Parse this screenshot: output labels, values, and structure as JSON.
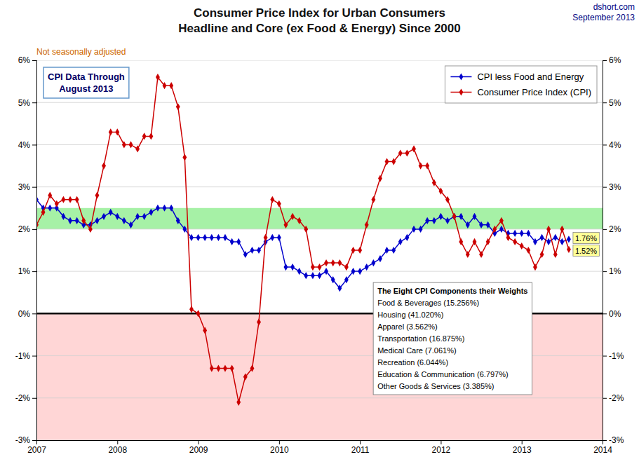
{
  "chart_data": {
    "type": "line",
    "title": [
      "Consumer Price Index for Urban Consumers",
      "Headline and Core (ex Food & Energy) Since 2000"
    ],
    "subtitle": "Not seasonally adjusted",
    "annotations": [
      {
        "text": [
          "dshort.com",
          "September 2013"
        ]
      },
      {
        "text": [
          "CPI Data Through",
          "August 2013"
        ]
      },
      {
        "title": "The Eight CPI Components their Weights",
        "text": [
          "Food & Beverages (15.256%)",
          "Housing (41.020%)",
          "Apparel (3.562%)",
          "Transportation (16.875%)",
          "Medical Care (7.061%)",
          "Recreation (6.044%)",
          "Education & Communication (6.797%)",
          "Other Goods & Services (3.385%)"
        ]
      }
    ],
    "x": [
      2007.0,
      2007.083,
      2007.167,
      2007.25,
      2007.333,
      2007.417,
      2007.5,
      2007.583,
      2007.667,
      2007.75,
      2007.833,
      2007.917,
      2008.0,
      2008.083,
      2008.167,
      2008.25,
      2008.333,
      2008.417,
      2008.5,
      2008.583,
      2008.667,
      2008.75,
      2008.833,
      2008.917,
      2009.0,
      2009.083,
      2009.167,
      2009.25,
      2009.333,
      2009.417,
      2009.5,
      2009.583,
      2009.667,
      2009.75,
      2009.833,
      2009.917,
      2010.0,
      2010.083,
      2010.167,
      2010.25,
      2010.333,
      2010.417,
      2010.5,
      2010.583,
      2010.667,
      2010.75,
      2010.833,
      2010.917,
      2011.0,
      2011.083,
      2011.167,
      2011.25,
      2011.333,
      2011.417,
      2011.5,
      2011.583,
      2011.667,
      2011.75,
      2011.833,
      2011.917,
      2012.0,
      2012.083,
      2012.167,
      2012.25,
      2012.333,
      2012.417,
      2012.5,
      2012.583,
      2012.667,
      2012.75,
      2012.833,
      2012.917,
      2013.0,
      2013.083,
      2013.167,
      2013.25,
      2013.333,
      2013.417,
      2013.5,
      2013.583
    ],
    "series": [
      {
        "name": "CPI less Food and Energy",
        "color": "#0000CC",
        "values": [
          2.7,
          2.5,
          2.5,
          2.5,
          2.3,
          2.2,
          2.2,
          2.1,
          2.1,
          2.2,
          2.3,
          2.4,
          2.3,
          2.2,
          2.1,
          2.3,
          2.3,
          2.4,
          2.5,
          2.5,
          2.5,
          2.2,
          2.0,
          1.8,
          1.8,
          1.8,
          1.8,
          1.8,
          1.8,
          1.7,
          1.7,
          1.4,
          1.5,
          1.5,
          1.7,
          1.8,
          1.8,
          1.1,
          1.1,
          1.0,
          0.9,
          0.9,
          0.9,
          1.0,
          0.8,
          0.6,
          0.8,
          1.0,
          1.0,
          1.1,
          1.2,
          1.3,
          1.5,
          1.5,
          1.7,
          1.8,
          2.0,
          2.0,
          2.2,
          2.2,
          2.3,
          2.2,
          2.3,
          2.3,
          2.1,
          2.3,
          2.1,
          2.1,
          1.9,
          2.0,
          1.9,
          1.9,
          1.9,
          1.9,
          1.7,
          1.8,
          1.7,
          1.8,
          1.7,
          1.76
        ],
        "value_labels": [
          null,
          null,
          null,
          null,
          null,
          null,
          null,
          null,
          null,
          null,
          null,
          null,
          null,
          null,
          null,
          null,
          null,
          null,
          null,
          null,
          null,
          null,
          null,
          null,
          null,
          null,
          null,
          null,
          null,
          null,
          null,
          null,
          null,
          null,
          null,
          null,
          null,
          null,
          null,
          null,
          null,
          null,
          null,
          null,
          null,
          null,
          null,
          null,
          null,
          null,
          null,
          null,
          null,
          null,
          null,
          null,
          null,
          null,
          null,
          null,
          null,
          null,
          null,
          null,
          null,
          null,
          null,
          null,
          null,
          null,
          null,
          null,
          null,
          null,
          null,
          null,
          null,
          null,
          null,
          "1.76%"
        ]
      },
      {
        "name": "Consumer Price Index (CPI)",
        "color": "#CC0000",
        "values": [
          2.1,
          2.4,
          2.8,
          2.6,
          2.7,
          2.7,
          2.7,
          2.2,
          2.0,
          2.8,
          3.5,
          4.3,
          4.3,
          4.0,
          4.0,
          3.9,
          4.2,
          4.2,
          5.6,
          5.4,
          5.4,
          4.9,
          3.7,
          0.1,
          0.0,
          -0.4,
          -1.3,
          -1.3,
          -1.3,
          -1.3,
          -2.1,
          -1.5,
          -1.3,
          -0.2,
          1.8,
          2.7,
          2.6,
          2.1,
          2.3,
          2.2,
          2.0,
          1.1,
          1.1,
          1.2,
          1.2,
          1.2,
          1.1,
          1.5,
          1.5,
          2.1,
          2.7,
          3.2,
          3.6,
          3.6,
          3.8,
          3.8,
          3.9,
          3.5,
          3.5,
          3.1,
          2.9,
          2.7,
          2.3,
          1.7,
          1.4,
          1.7,
          1.4,
          1.7,
          2.0,
          2.2,
          1.8,
          1.7,
          1.6,
          1.5,
          1.1,
          1.4,
          2.0,
          1.4,
          2.0,
          1.52
        ],
        "value_labels": [
          null,
          null,
          null,
          null,
          null,
          null,
          null,
          null,
          null,
          null,
          null,
          null,
          null,
          null,
          null,
          null,
          null,
          null,
          null,
          null,
          null,
          null,
          null,
          null,
          null,
          null,
          null,
          null,
          null,
          null,
          null,
          null,
          null,
          null,
          null,
          null,
          null,
          null,
          null,
          null,
          null,
          null,
          null,
          null,
          null,
          null,
          null,
          null,
          null,
          null,
          null,
          null,
          null,
          null,
          null,
          null,
          null,
          null,
          null,
          null,
          null,
          null,
          null,
          null,
          null,
          null,
          null,
          null,
          null,
          null,
          null,
          null,
          null,
          null,
          null,
          null,
          null,
          null,
          null,
          "1.52%"
        ]
      }
    ],
    "marker": "diamond",
    "bands": [
      {
        "from": -3,
        "to": 0,
        "color": "#FFCCCC"
      },
      {
        "from": 2.0,
        "to": 2.5,
        "color": "#90EE90"
      }
    ],
    "reference_lines": [
      {
        "value": 0,
        "color": "#000000"
      }
    ],
    "xlim": [
      2007,
      2014
    ],
    "xticks": [
      2007,
      2008,
      2009,
      2010,
      2011,
      2012,
      2013,
      2014
    ],
    "ylim": [
      -3,
      6
    ],
    "yticks": [
      {
        "value": -3,
        "label": "-3%"
      },
      {
        "value": -2,
        "label": "-2%"
      },
      {
        "value": -1,
        "label": "-1%"
      },
      {
        "value": 0,
        "label": "0%"
      },
      {
        "value": 1,
        "label": "1%"
      },
      {
        "value": 2,
        "label": "2%"
      },
      {
        "value": 3,
        "label": "3%"
      },
      {
        "value": 4,
        "label": "4%"
      },
      {
        "value": 5,
        "label": "5%"
      },
      {
        "value": 6,
        "label": "6%"
      }
    ],
    "y2lim": [
      -3,
      6
    ],
    "y2ticks": [
      {
        "value": -3,
        "label": "-3%"
      },
      {
        "value": -2,
        "label": "-2%"
      },
      {
        "value": -1,
        "label": "-1%"
      },
      {
        "value": 0,
        "label": "0%"
      },
      {
        "value": 1,
        "label": "1%"
      },
      {
        "value": 2,
        "label": "2%"
      },
      {
        "value": 3,
        "label": "3%"
      },
      {
        "value": 4,
        "label": "4%"
      },
      {
        "value": 5,
        "label": "5%"
      },
      {
        "value": 6,
        "label": "6%"
      }
    ],
    "grid": true,
    "legend": "top-right"
  }
}
